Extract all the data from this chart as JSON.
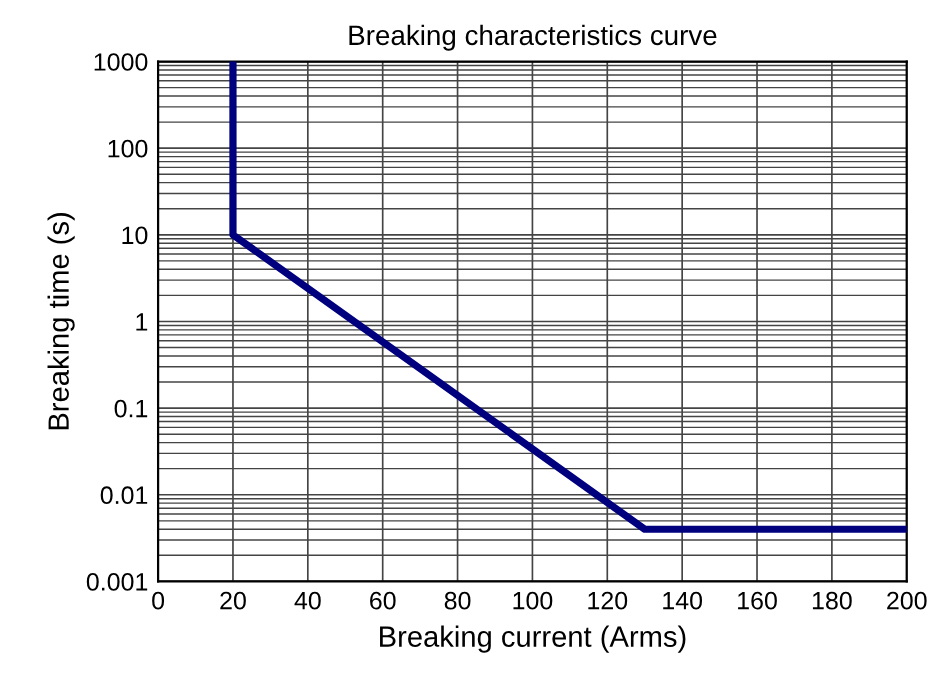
{
  "chart_data": {
    "type": "line",
    "title": "Breaking characteristics curve",
    "xlabel": "Breaking current (Arms)",
    "ylabel": "Breaking time (s)",
    "x": [
      20,
      20,
      130,
      200
    ],
    "series": [
      {
        "color": "#00007f",
        "values": [
          1000,
          10,
          0.004,
          0.004
        ]
      }
    ],
    "log": "y",
    "xlim": [
      0,
      200
    ],
    "ylim": [
      0.001,
      1000
    ],
    "xticks": [
      0,
      20,
      40,
      60,
      80,
      100,
      120,
      140,
      160,
      180,
      200
    ],
    "yticks": [
      0.001,
      0.01,
      0.1,
      1,
      10,
      100,
      1000
    ],
    "grid": true,
    "marker": "none",
    "line_style": "solid"
  }
}
